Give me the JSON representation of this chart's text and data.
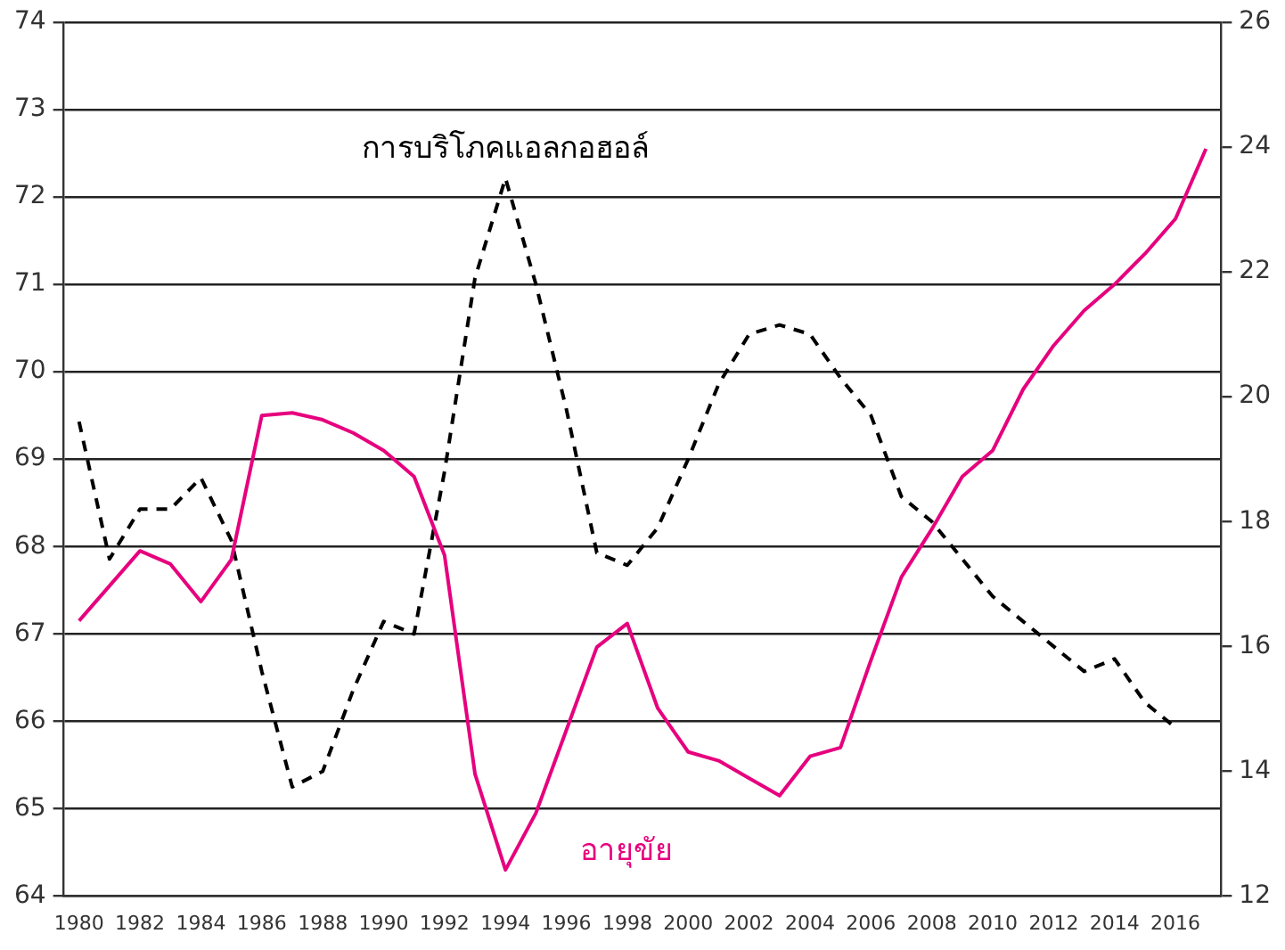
{
  "chart_data": {
    "type": "line",
    "categories": [
      "1980",
      null,
      "1982",
      null,
      "1984",
      null,
      "1986",
      null,
      "1988",
      null,
      "1990",
      null,
      "1992",
      null,
      "1994",
      null,
      "1996",
      null,
      "1998",
      null,
      "2000",
      null,
      "2002",
      null,
      "2004",
      null,
      "2006",
      null,
      "2008",
      null,
      "2010",
      null,
      "2012",
      null,
      "2014",
      null,
      "2016",
      null
    ],
    "series": [
      {
        "name": "อายุขัย",
        "color": "#e6007e",
        "line_style": "solid",
        "values": [
          67.15,
          67.55,
          67.95,
          67.8,
          67.37,
          67.85,
          69.5,
          69.53,
          69.45,
          69.3,
          69.1,
          68.8,
          67.9,
          65.4,
          64.3,
          64.95,
          65.9,
          66.85,
          67.12,
          66.15,
          65.65,
          65.55,
          65.35,
          65.15,
          65.6,
          65.7,
          66.7,
          67.65,
          68.2,
          68.8,
          69.1,
          69.8,
          70.3,
          70.7,
          71.0,
          71.35,
          71.75,
          72.55
        ]
      },
      {
        "name": "การบริโภคแอลกอฮอล์",
        "color": "#000000",
        "line_style": "dashed",
        "axis": "y2",
        "values": [
          19.6,
          17.4,
          18.2,
          18.2,
          18.7,
          17.7,
          15.6,
          13.75,
          14.0,
          15.3,
          16.4,
          16.2,
          18.8,
          21.9,
          23.5,
          21.8,
          19.8,
          17.5,
          17.3,
          17.9,
          19.0,
          20.2,
          21.0,
          21.15,
          21.0,
          20.3,
          19.7,
          18.4,
          18.0,
          17.4,
          16.8,
          16.4,
          16.0,
          15.6,
          15.8,
          15.1,
          14.7,
          null
        ]
      }
    ],
    "ylim": [
      64,
      74
    ],
    "yticks": [
      64,
      65,
      66,
      67,
      68,
      69,
      70,
      71,
      72,
      73,
      74
    ],
    "y2lim": [
      12,
      26
    ],
    "y2ticks": [
      12,
      14,
      16,
      18,
      20,
      22,
      24,
      26
    ],
    "grid": "y",
    "legend": false,
    "marker": "none"
  }
}
